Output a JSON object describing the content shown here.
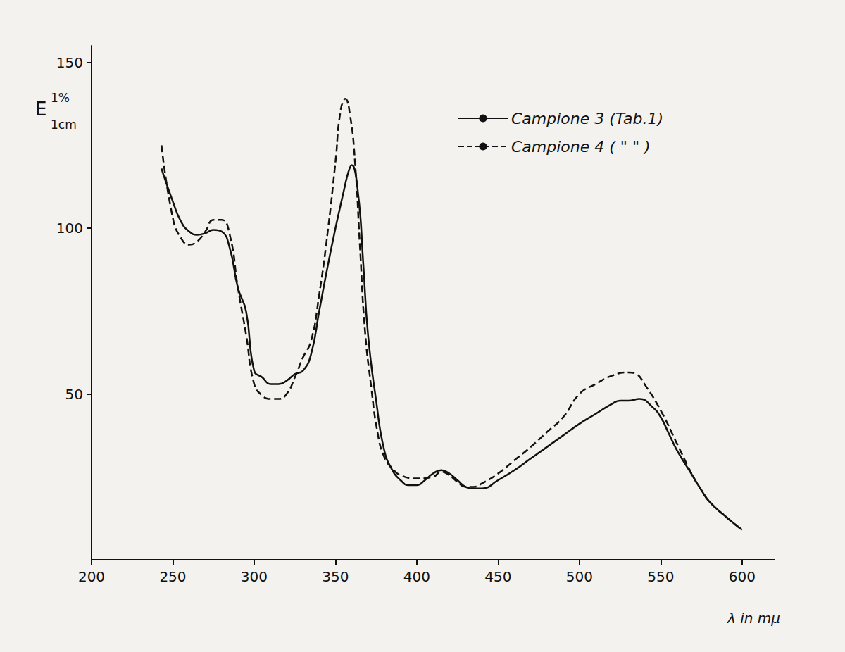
{
  "chart_data": {
    "type": "line",
    "y_label": "E 1% 1cm",
    "x_label": "λ in mμ",
    "xlim": [
      200,
      620
    ],
    "xticks": [
      200,
      250,
      300,
      350,
      400,
      450,
      500,
      550,
      600
    ],
    "ylim": [
      0,
      155
    ],
    "yticks": [
      50,
      100,
      150
    ],
    "grid": false,
    "legend": "upper right",
    "series": [
      {
        "name": "Campione 3 (Tab.1)",
        "color": "#111111",
        "line_style": "solid",
        "x": [
          243,
          250,
          255,
          260,
          265,
          270,
          275,
          280,
          285,
          290,
          295,
          300,
          305,
          310,
          315,
          320,
          325,
          330,
          335,
          340,
          345,
          350,
          355,
          358,
          360,
          364,
          367,
          370,
          375,
          380,
          385,
          390,
          395,
          400,
          405,
          410,
          415,
          420,
          425,
          430,
          435,
          440,
          450,
          460,
          470,
          480,
          490,
          500,
          510,
          520,
          525,
          530,
          537,
          545,
          550,
          555,
          560,
          570,
          575,
          580,
          590,
          600
        ],
        "values": [
          118,
          108,
          102,
          99,
          98,
          98.5,
          99.5,
          99,
          94,
          82,
          75,
          57,
          55,
          53,
          53,
          54,
          56,
          57,
          62,
          75,
          88,
          100,
          111,
          117,
          119,
          110,
          90,
          68,
          48,
          33,
          27,
          24,
          22.5,
          22.5,
          24,
          26,
          27,
          26,
          24,
          22,
          21.5,
          21.5,
          24,
          27,
          30.5,
          34,
          37.5,
          41,
          44,
          47,
          48,
          48,
          48.5,
          46,
          43,
          38,
          33,
          25,
          21,
          17.5,
          13,
          9
        ]
      },
      {
        "name": "Campione 4 ( \" \" )",
        "color": "#111111",
        "line_style": "dashed",
        "x": [
          243,
          250,
          255,
          260,
          265,
          270,
          275,
          280,
          285,
          290,
          295,
          300,
          305,
          310,
          315,
          320,
          325,
          330,
          335,
          340,
          345,
          350,
          353,
          356,
          359,
          362,
          365,
          368,
          372,
          376,
          380,
          385,
          390,
          400,
          410,
          415,
          420,
          425,
          430,
          435,
          440,
          450,
          460,
          470,
          480,
          490,
          500,
          510,
          520,
          530,
          535,
          540,
          550,
          560,
          570,
          575,
          580,
          590,
          600
        ],
        "values": [
          125,
          103,
          97,
          95,
          96,
          99,
          102.5,
          102.5,
          98,
          82,
          68,
          53,
          49.5,
          48.5,
          48.5,
          50,
          55,
          61,
          66,
          80,
          98,
          120,
          135,
          139,
          134,
          120,
          95,
          70,
          52,
          38,
          31,
          27.5,
          25.5,
          24.5,
          25,
          26.5,
          25.5,
          23.5,
          22,
          22,
          23,
          26,
          30,
          34,
          38.5,
          43,
          50,
          53,
          55.5,
          56.5,
          56,
          53,
          45,
          35,
          25,
          21,
          17.5,
          13,
          9
        ]
      }
    ]
  }
}
